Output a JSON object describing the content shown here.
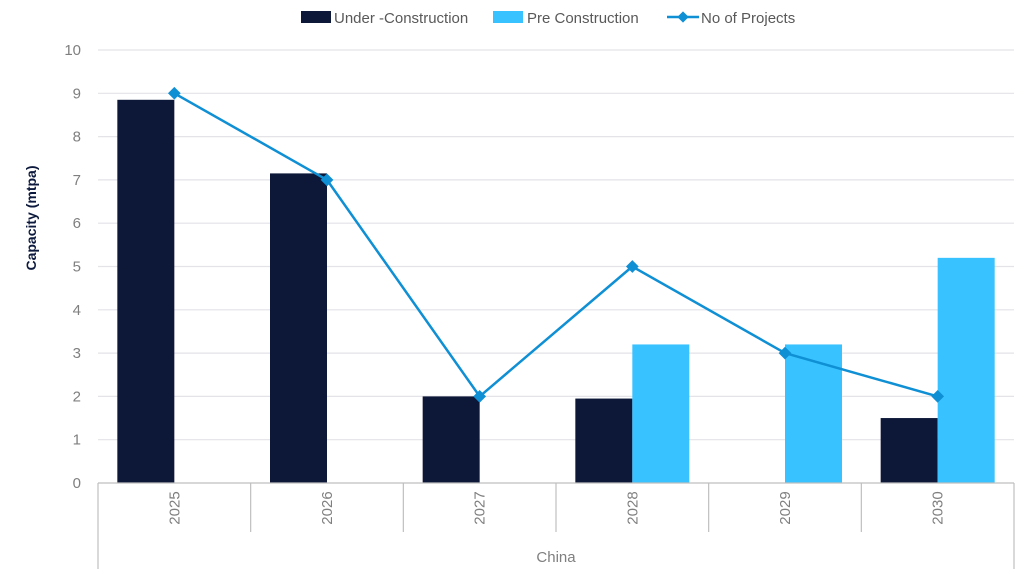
{
  "chart_data": {
    "type": "bar",
    "title": "",
    "xlabel": "China",
    "ylabel": "Capacity (mtpa)",
    "ylim": [
      0,
      10
    ],
    "yticks": [
      "0",
      "1",
      "2",
      "3",
      "4",
      "5",
      "6",
      "7",
      "8",
      "9",
      "10"
    ],
    "grid": true,
    "legend_position": "top-center",
    "group_label": "China",
    "categories": [
      "2025",
      "2026",
      "2027",
      "2028",
      "2029",
      "2030"
    ],
    "series": [
      {
        "name": "Under -Construction",
        "type": "bar",
        "color": "#0d1738",
        "values": [
          8.85,
          7.15,
          2.0,
          1.95,
          0,
          1.5
        ]
      },
      {
        "name": "Pre Construction",
        "type": "bar",
        "color": "#38c2ff",
        "values": [
          0,
          0,
          0,
          3.2,
          3.2,
          5.2
        ]
      },
      {
        "name": "No of Projects",
        "type": "line",
        "color": "#0f8fd4",
        "marker": "diamond",
        "values": [
          9,
          7,
          2,
          5,
          3,
          2
        ]
      }
    ]
  }
}
